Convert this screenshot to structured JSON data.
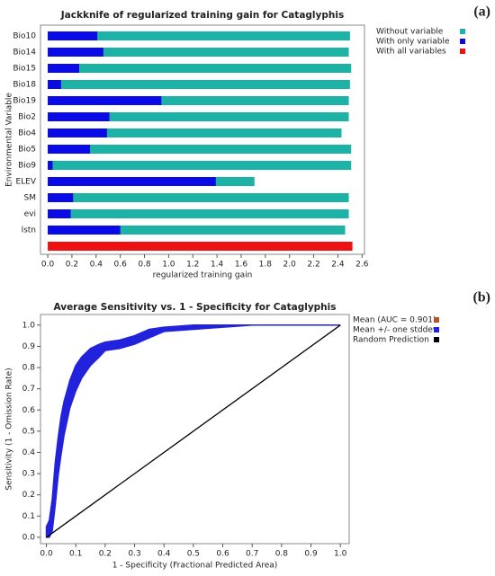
{
  "chart_data": [
    {
      "type": "bar",
      "orientation": "horizontal",
      "panel_label": "(a)",
      "title": "Jackknife of regularized training gain for Cataglyphis",
      "xlabel": "regularized training gain",
      "ylabel": "Environmental Variable",
      "categories": [
        "Bio10",
        "Bio14",
        "Bio15",
        "Bio18",
        "Bio19",
        "Bio2",
        "Bio4",
        "Bio5",
        "Bio9",
        "ELEV",
        "SM",
        "evi",
        "lstn",
        null
      ],
      "series": [
        {
          "name": "Without variable",
          "color": "#1cb3a6",
          "values": [
            2.5,
            2.49,
            2.51,
            2.5,
            2.49,
            2.49,
            2.43,
            2.51,
            2.51,
            1.71,
            2.49,
            2.49,
            2.46,
            null
          ]
        },
        {
          "name": "With only variable",
          "color": "#0a0ae6",
          "values": [
            0.41,
            0.46,
            0.26,
            0.11,
            0.94,
            0.51,
            0.49,
            0.35,
            0.04,
            1.39,
            0.21,
            0.19,
            0.6,
            null
          ]
        },
        {
          "name": "With all variables",
          "color": "#ee1111",
          "values": [
            null,
            null,
            null,
            null,
            null,
            null,
            null,
            null,
            null,
            null,
            null,
            null,
            null,
            2.52
          ]
        }
      ],
      "xlim": [
        -0.06,
        2.62
      ],
      "xticks": [
        {
          "value": 0,
          "label": "0.0"
        },
        0.2,
        0.4,
        0.6,
        0.8,
        {
          "value": 1,
          "label": "1.0"
        },
        1.2,
        1.4,
        1.6,
        1.8,
        {
          "value": 2,
          "label": "2.0"
        },
        2.2,
        2.4,
        2.6
      ],
      "legend": "top-right",
      "grid": false
    },
    {
      "type": "line",
      "panel_label": "(b)",
      "title": "Average Sensitivity vs. 1 - Specificity for Cataglyphis",
      "xlabel": "1 - Specificity (Fractional Predicted Area)",
      "ylabel": "Sensitivity (1 - Omission Rate)",
      "x": [
        0,
        0.01,
        0.02,
        0.03,
        0.04,
        0.05,
        0.06,
        0.08,
        0.1,
        0.12,
        0.15,
        0.18,
        0.2,
        0.25,
        0.3,
        0.35,
        0.4,
        0.5,
        0.6,
        0.7,
        0.8,
        0.9,
        1
      ],
      "series": [
        {
          "name": "Mean (AUC = 0.901)",
          "color": "#b5532a",
          "values": [
            0,
            0.03,
            0.1,
            0.25,
            0.38,
            0.48,
            0.56,
            0.68,
            0.75,
            0.8,
            0.85,
            0.88,
            0.9,
            0.91,
            0.93,
            0.96,
            0.98,
            0.99,
            1,
            1,
            1,
            1,
            1
          ]
        },
        {
          "name": "Mean +/- one stddev",
          "color": "#2222dd",
          "upper": [
            0.05,
            0.08,
            0.18,
            0.35,
            0.47,
            0.57,
            0.64,
            0.74,
            0.81,
            0.85,
            0.89,
            0.91,
            0.92,
            0.93,
            0.95,
            0.98,
            0.99,
            1,
            1,
            1,
            1,
            1,
            1
          ],
          "lower": [
            0,
            0,
            0.03,
            0.15,
            0.29,
            0.39,
            0.48,
            0.61,
            0.69,
            0.75,
            0.81,
            0.85,
            0.88,
            0.89,
            0.91,
            0.94,
            0.97,
            0.98,
            0.99,
            1,
            1,
            1,
            1
          ]
        },
        {
          "name": "Random Prediction",
          "color": "#000000",
          "x": [
            0,
            1
          ],
          "values": [
            0,
            1
          ]
        }
      ],
      "xlim": [
        -0.02,
        1.03
      ],
      "ylim": [
        -0.03,
        1.05
      ],
      "xticks": [
        {
          "value": 0,
          "label": "0.0"
        },
        0.1,
        0.2,
        0.3,
        0.4,
        0.5,
        0.6,
        0.7,
        0.8,
        0.9,
        {
          "value": 1,
          "label": "1.0"
        }
      ],
      "yticks": [
        {
          "value": 0,
          "label": "0.0"
        },
        0.1,
        0.2,
        0.3,
        0.4,
        0.5,
        0.6,
        0.7,
        0.8,
        0.9,
        {
          "value": 1,
          "label": "1.0"
        }
      ],
      "legend": "top-right",
      "grid": false
    }
  ]
}
